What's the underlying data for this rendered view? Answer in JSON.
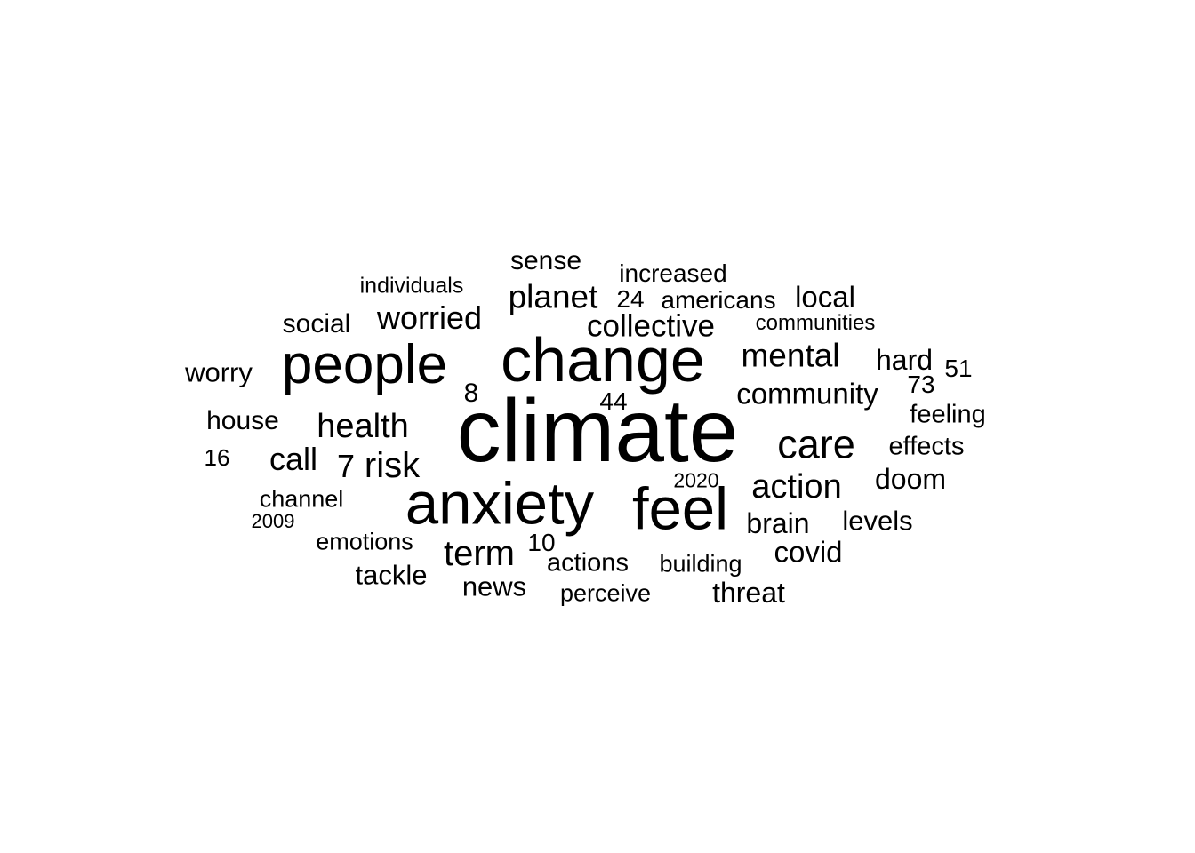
{
  "words": [
    {
      "text": "climate",
      "weight": 100
    },
    {
      "text": "change",
      "weight": 70
    },
    {
      "text": "anxiety",
      "weight": 67
    },
    {
      "text": "feel",
      "weight": 67
    },
    {
      "text": "people",
      "weight": 62
    },
    {
      "text": "care",
      "weight": 45
    },
    {
      "text": "risk",
      "weight": 40
    },
    {
      "text": "term",
      "weight": 40
    },
    {
      "text": "health",
      "weight": 38
    },
    {
      "text": "action",
      "weight": 38
    },
    {
      "text": "planet",
      "weight": 37
    },
    {
      "text": "worried",
      "weight": 36
    },
    {
      "text": "collective",
      "weight": 35
    },
    {
      "text": "mental",
      "weight": 37
    },
    {
      "text": "call",
      "weight": 36
    },
    {
      "text": "7",
      "weight": 36
    },
    {
      "text": "community",
      "weight": 33
    },
    {
      "text": "local",
      "weight": 33
    },
    {
      "text": "hard",
      "weight": 32
    },
    {
      "text": "brain",
      "weight": 32
    },
    {
      "text": "covid",
      "weight": 33
    },
    {
      "text": "news",
      "weight": 31
    },
    {
      "text": "threat",
      "weight": 32
    },
    {
      "text": "doom",
      "weight": 32
    },
    {
      "text": "levels",
      "weight": 31
    },
    {
      "text": "tackle",
      "weight": 31
    },
    {
      "text": "worry",
      "weight": 31
    },
    {
      "text": "social",
      "weight": 30
    },
    {
      "text": "sense",
      "weight": 30
    },
    {
      "text": "house",
      "weight": 30
    },
    {
      "text": "8",
      "weight": 30
    },
    {
      "text": "effects",
      "weight": 29
    },
    {
      "text": "feeling",
      "weight": 29
    },
    {
      "text": "actions",
      "weight": 29
    },
    {
      "text": "increased",
      "weight": 28
    },
    {
      "text": "americans",
      "weight": 28
    },
    {
      "text": "24",
      "weight": 28
    },
    {
      "text": "10",
      "weight": 28
    },
    {
      "text": "73",
      "weight": 28
    },
    {
      "text": "44",
      "weight": 28
    },
    {
      "text": "51",
      "weight": 28
    },
    {
      "text": "emotions",
      "weight": 27
    },
    {
      "text": "building",
      "weight": 27
    },
    {
      "text": "channel",
      "weight": 27
    },
    {
      "text": "perceive",
      "weight": 27
    },
    {
      "text": "16",
      "weight": 26
    },
    {
      "text": "individuals",
      "weight": 25
    },
    {
      "text": "communities",
      "weight": 24
    },
    {
      "text": "2020",
      "weight": 23
    },
    {
      "text": "2009",
      "weight": 22
    }
  ]
}
